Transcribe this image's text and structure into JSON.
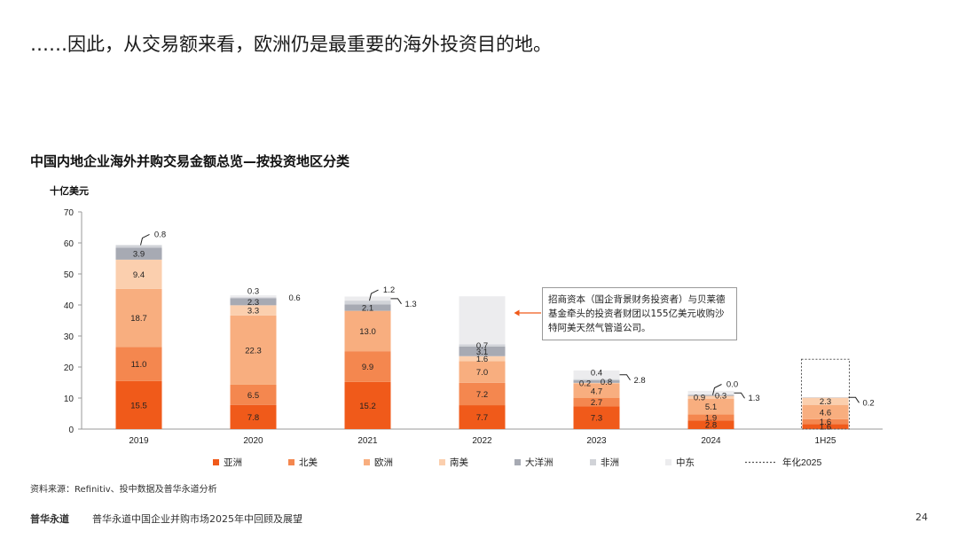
{
  "headline": "……因此，从交易额来看，欧洲仍是最重要的海外投资目的地。",
  "chart_data": {
    "type": "bar",
    "stacked": true,
    "title": "中国内地企业海外并购交易金额总览—按投资地区分类",
    "ylabel": "十亿美元",
    "ylim": [
      0,
      70
    ],
    "yticks": [
      0,
      10,
      20,
      30,
      40,
      50,
      60,
      70
    ],
    "categories": [
      "2019",
      "2020",
      "2021",
      "2022",
      "2023",
      "2024",
      "1H25"
    ],
    "series": [
      {
        "name": "亚洲",
        "color": "#f05a1a",
        "values": [
          15.5,
          7.8,
          15.2,
          7.7,
          7.3,
          2.8,
          1.6
        ]
      },
      {
        "name": "北美",
        "color": "#f4874f",
        "values": [
          11.0,
          6.5,
          9.9,
          7.2,
          2.7,
          1.9,
          1.6
        ]
      },
      {
        "name": "欧洲",
        "color": "#f8ae7f",
        "values": [
          18.7,
          22.3,
          13.0,
          7.0,
          4.7,
          5.1,
          4.6
        ]
      },
      {
        "name": "南美",
        "color": "#fbcfae",
        "values": [
          9.4,
          3.3,
          0,
          1.6,
          0.2,
          0.9,
          2.3
        ]
      },
      {
        "name": "大洋洲",
        "color": "#a7aab3",
        "values": [
          3.9,
          2.3,
          2.1,
          3.1,
          0.8,
          0.3,
          0
        ]
      },
      {
        "name": "非洲",
        "color": "#d1d3d8",
        "values": [
          0.8,
          0.3,
          1.2,
          0.7,
          0.4,
          0.0,
          0.2
        ]
      },
      {
        "name": "中东",
        "color": "#ececee",
        "values": [
          0,
          0.6,
          1.3,
          15.5,
          2.8,
          1.3,
          0
        ]
      }
    ],
    "annualized": {
      "name": "年化2025",
      "category": "1H25",
      "value": 22.5
    },
    "labels": [
      {
        "cat": 0,
        "series": 0,
        "text": "15.5",
        "mode": "in"
      },
      {
        "cat": 0,
        "series": 1,
        "text": "11.0",
        "mode": "in"
      },
      {
        "cat": 0,
        "series": 2,
        "text": "18.7",
        "mode": "in"
      },
      {
        "cat": 0,
        "series": 3,
        "text": "9.4",
        "mode": "in"
      },
      {
        "cat": 0,
        "series": 4,
        "text": "3.9",
        "mode": "in"
      },
      {
        "cat": 0,
        "series": 5,
        "text": "0.8",
        "mode": "out-top"
      },
      {
        "cat": 1,
        "series": 0,
        "text": "7.8",
        "mode": "in"
      },
      {
        "cat": 1,
        "series": 1,
        "text": "6.5",
        "mode": "in"
      },
      {
        "cat": 1,
        "series": 2,
        "text": "22.3",
        "mode": "in"
      },
      {
        "cat": 1,
        "series": 3,
        "text": "3.3",
        "mode": "in"
      },
      {
        "cat": 1,
        "series": 4,
        "text": "2.3",
        "mode": "in"
      },
      {
        "cat": 1,
        "series": 5,
        "text": "0.3",
        "mode": "above"
      },
      {
        "cat": 1,
        "series": 6,
        "text": "0.6",
        "mode": "right"
      },
      {
        "cat": 2,
        "series": 0,
        "text": "15.2",
        "mode": "in"
      },
      {
        "cat": 2,
        "series": 1,
        "text": "9.9",
        "mode": "in"
      },
      {
        "cat": 2,
        "series": 2,
        "text": "13.0",
        "mode": "in"
      },
      {
        "cat": 2,
        "series": 4,
        "text": "2.1",
        "mode": "in"
      },
      {
        "cat": 2,
        "series": 5,
        "text": "1.2",
        "mode": "out-top"
      },
      {
        "cat": 2,
        "series": 6,
        "text": "1.3",
        "mode": "right-line"
      },
      {
        "cat": 3,
        "series": 0,
        "text": "7.7",
        "mode": "in"
      },
      {
        "cat": 3,
        "series": 1,
        "text": "7.2",
        "mode": "in"
      },
      {
        "cat": 3,
        "series": 2,
        "text": "7.0",
        "mode": "in"
      },
      {
        "cat": 3,
        "series": 3,
        "text": "1.6",
        "mode": "in"
      },
      {
        "cat": 3,
        "series": 4,
        "text": "3.1",
        "mode": "in"
      },
      {
        "cat": 3,
        "series": 5,
        "text": "0.7",
        "mode": "in"
      },
      {
        "cat": 4,
        "series": 0,
        "text": "7.3",
        "mode": "in"
      },
      {
        "cat": 4,
        "series": 1,
        "text": "2.7",
        "mode": "in"
      },
      {
        "cat": 4,
        "series": 2,
        "text": "4.7",
        "mode": "in"
      },
      {
        "cat": 4,
        "series": 3,
        "text": "0.2",
        "mode": "in-left"
      },
      {
        "cat": 4,
        "series": 4,
        "text": "0.8",
        "mode": "in-right"
      },
      {
        "cat": 4,
        "series": 5,
        "text": "0.4",
        "mode": "above"
      },
      {
        "cat": 4,
        "series": 6,
        "text": "2.8",
        "mode": "right-line"
      },
      {
        "cat": 5,
        "series": 0,
        "text": "2.8",
        "mode": "in"
      },
      {
        "cat": 5,
        "series": 1,
        "text": "1.9",
        "mode": "in"
      },
      {
        "cat": 5,
        "series": 2,
        "text": "5.1",
        "mode": "in"
      },
      {
        "cat": 5,
        "series": 3,
        "text": "0.9",
        "mode": "in-left"
      },
      {
        "cat": 5,
        "series": 4,
        "text": "0.3",
        "mode": "in-right"
      },
      {
        "cat": 5,
        "series": 5,
        "text": "0.0",
        "mode": "out-top"
      },
      {
        "cat": 5,
        "series": 6,
        "text": "1.3",
        "mode": "right-line"
      },
      {
        "cat": 6,
        "series": 0,
        "text": "1.6",
        "mode": "in"
      },
      {
        "cat": 6,
        "series": 1,
        "text": "1.6",
        "mode": "in"
      },
      {
        "cat": 6,
        "series": 2,
        "text": "4.6",
        "mode": "in"
      },
      {
        "cat": 6,
        "series": 3,
        "text": "2.3",
        "mode": "in"
      },
      {
        "cat": 6,
        "series": 5,
        "text": "0.2",
        "mode": "right-line"
      }
    ]
  },
  "callout": {
    "text": "招商资本（国企背景财务投资者）与贝莱德基金牵头的投资者财团以155亿美元收购沙特阿美天然气管道公司。",
    "target_category": "2022",
    "arrow_color": "#f05a1a"
  },
  "footer": {
    "source": "资料来源：Refinitiv、投中数据及普华永道分析",
    "brand": "普华永道",
    "report": "普华永道中国企业并购市场2025年中回顾及展望",
    "page": "24"
  }
}
